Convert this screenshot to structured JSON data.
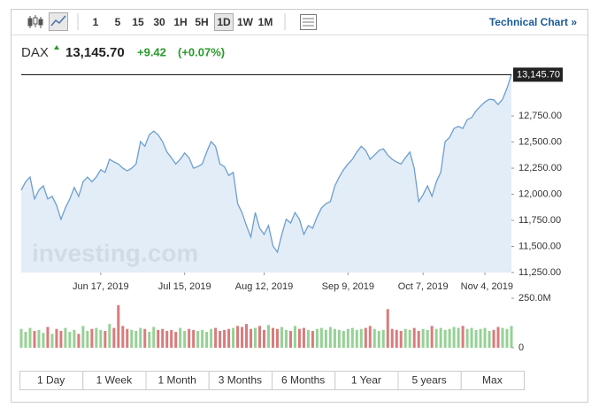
{
  "toolbar": {
    "intervals": [
      "1",
      "5",
      "15",
      "30",
      "1H",
      "5H",
      "1D",
      "1W",
      "1M"
    ],
    "selected": 6,
    "link": "Technical Chart »"
  },
  "quote": {
    "symbol": "DAX",
    "change": "+9.42",
    "change_pct": "(+0.07%)"
  },
  "chart_data": {
    "type": "line",
    "watermark": "investing.com",
    "series": [
      {
        "name": "DAX",
        "color": "#6d9ecf",
        "values": [
          12040,
          12120,
          12165,
          11955,
          12040,
          12080,
          11955,
          11980,
          11895,
          11760,
          11870,
          11955,
          12065,
          11980,
          12120,
          12165,
          12120,
          12165,
          12235,
          12210,
          12335,
          12310,
          12290,
          12250,
          12225,
          12250,
          12290,
          12505,
          12460,
          12570,
          12605,
          12570,
          12505,
          12405,
          12350,
          12290,
          12335,
          12395,
          12350,
          12250,
          12265,
          12290,
          12405,
          12505,
          12460,
          12290,
          12265,
          12180,
          12210,
          11910,
          11825,
          11700,
          11590,
          11825,
          11675,
          11615,
          11700,
          11505,
          11445,
          11615,
          11760,
          11725,
          11825,
          11760,
          11615,
          11700,
          11675,
          11785,
          11870,
          11910,
          11930,
          12080,
          12165,
          12235,
          12290,
          12335,
          12405,
          12460,
          12420,
          12335,
          12375,
          12420,
          12435,
          12375,
          12335,
          12310,
          12290,
          12350,
          12405,
          12250,
          11930,
          11995,
          12080,
          11980,
          12120,
          12210,
          12505,
          12545,
          12630,
          12650,
          12630,
          12715,
          12735,
          12800,
          12845,
          12885,
          12910,
          12905,
          12860,
          12910,
          13015,
          13145.7
        ]
      }
    ],
    "last_price": 13145.7,
    "last_price_label": "13,145.70",
    "xlim": [
      0,
      111
    ],
    "xticks": [
      {
        "value": 18,
        "label": "Jun 17, 2019"
      },
      {
        "value": 37,
        "label": "Jul 15, 2019"
      },
      {
        "value": 55,
        "label": "Aug 12, 2019"
      },
      {
        "value": 74,
        "label": "Sep 9, 2019"
      },
      {
        "value": 91,
        "label": "Oct 7, 2019"
      },
      {
        "value": 105,
        "label": "Nov 4, 2019"
      }
    ],
    "ylim": [
      11250,
      13200
    ],
    "yticks": [
      {
        "value": 11250,
        "label": "11,250.00"
      },
      {
        "value": 11500,
        "label": "11,500.00"
      },
      {
        "value": 11750,
        "label": "11,750.00"
      },
      {
        "value": 12000,
        "label": "12,000.00"
      },
      {
        "value": 12250,
        "label": "12,250.00"
      },
      {
        "value": 12500,
        "label": "12,500.00"
      },
      {
        "value": 12750,
        "label": "12,750.00"
      }
    ],
    "volume": {
      "up_color": "#96d196",
      "down_color": "#d97b7d",
      "values": [
        95,
        80,
        100,
        85,
        90,
        75,
        105,
        70,
        95,
        85,
        100,
        80,
        90,
        70,
        110,
        85,
        95,
        100,
        90,
        85,
        120,
        100,
        215,
        110,
        95,
        90,
        85,
        100,
        95,
        80,
        105,
        90,
        95,
        85,
        90,
        80,
        100,
        85,
        95,
        90,
        85,
        90,
        80,
        95,
        100,
        85,
        90,
        95,
        100,
        110,
        105,
        120,
        95,
        100,
        110,
        90,
        115,
        100,
        95,
        105,
        90,
        85,
        110,
        95,
        100,
        90,
        85,
        95,
        100,
        90,
        105,
        95,
        90,
        85,
        95,
        100,
        90,
        95,
        100,
        110,
        95,
        85,
        90,
        195,
        95,
        90,
        85,
        95,
        90,
        100,
        85,
        95,
        90,
        110,
        95,
        100,
        90,
        95,
        105,
        100,
        110,
        95,
        100,
        90,
        95,
        100,
        85,
        90,
        105,
        100,
        95,
        110
      ],
      "ylim": [
        0,
        250
      ],
      "yticks": [
        0,
        {
          "value": 250,
          "label": "250.0M"
        }
      ]
    }
  },
  "ranges": [
    "1 Day",
    "1 Week",
    "1 Month",
    "3 Months",
    "6 Months",
    "1 Year",
    "5 years",
    "Max"
  ]
}
